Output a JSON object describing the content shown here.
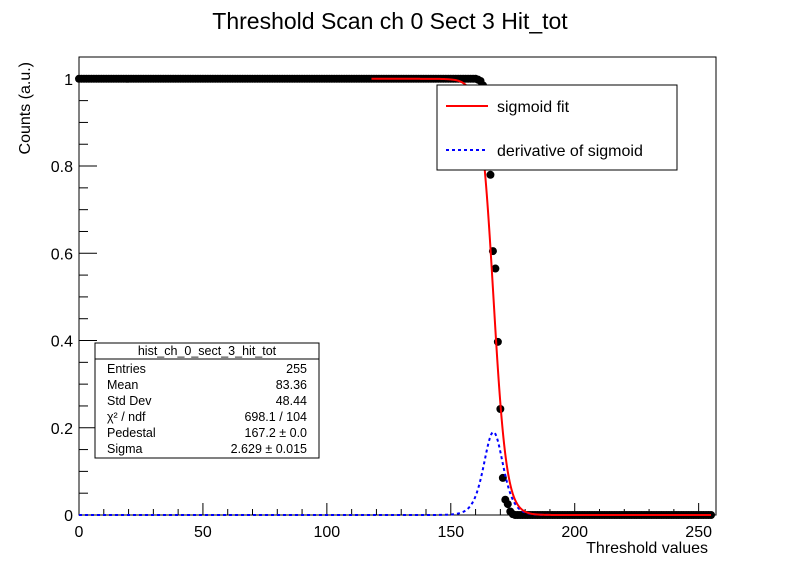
{
  "chart_data": {
    "type": "scatter",
    "title": "Threshold Scan ch 0 Sect 3 Hit_tot",
    "xlabel": "Threshold values",
    "ylabel": "Counts (a.u.)",
    "xlim": [
      0,
      257
    ],
    "ylim": [
      0,
      1.05
    ],
    "x_ticks": [
      0,
      50,
      100,
      150,
      200,
      250
    ],
    "y_ticks": [
      0,
      0.2,
      0.4,
      0.6,
      0.8,
      1
    ],
    "x_tick_labels": [
      "0",
      "50",
      "100",
      "150",
      "200",
      "250"
    ],
    "y_tick_labels": [
      "0",
      "0.2",
      "0.4",
      "0.6",
      "0.8",
      "1"
    ],
    "grid": false,
    "series": [
      {
        "kind": "markers",
        "color": "#000000",
        "x": [
          160,
          161,
          162,
          163,
          164,
          165,
          166,
          167,
          168,
          169,
          170,
          171,
          172,
          173,
          174,
          175
        ],
        "y": [
          1.0,
          0.998,
          0.995,
          0.985,
          0.96,
          0.9,
          0.78,
          0.605,
          0.565,
          0.397,
          0.243,
          0.085,
          0.035,
          0.025,
          0.008,
          0.002
        ],
        "x_plateau_start": 0,
        "x_plateau_end": 159,
        "plateau_value": 1.0,
        "x_floor_start": 176,
        "x_floor_end": 255,
        "floor_value": 0
      },
      {
        "name": "sigmoid fit",
        "kind": "line",
        "color": "#ff0000",
        "function": "sigmoid",
        "pedestal": 167.2,
        "sigma": 2.629,
        "x_range": [
          118,
          255
        ]
      },
      {
        "name": "derivative of sigmoid",
        "kind": "dashed-line",
        "color": "#0000ff",
        "function": "sigmoid-derivative",
        "peak": 0.19,
        "x_range": [
          0,
          255
        ]
      }
    ],
    "legend": {
      "position": "top-right",
      "entries": [
        "sigmoid fit",
        "derivative of sigmoid"
      ]
    },
    "stats_box": {
      "title": "hist_ch_0_sect_3_hit_tot",
      "rows": [
        {
          "label": "Entries",
          "value": "255"
        },
        {
          "label": "Mean",
          "value": "83.36"
        },
        {
          "label": "Std Dev",
          "value": "48.44"
        },
        {
          "label": "χ² / ndf",
          "value": "698.1 / 104"
        },
        {
          "label": "Pedestal",
          "value": "167.2 ± 0.0"
        },
        {
          "label": "Sigma",
          "value": "2.629 ± 0.015"
        }
      ]
    }
  }
}
